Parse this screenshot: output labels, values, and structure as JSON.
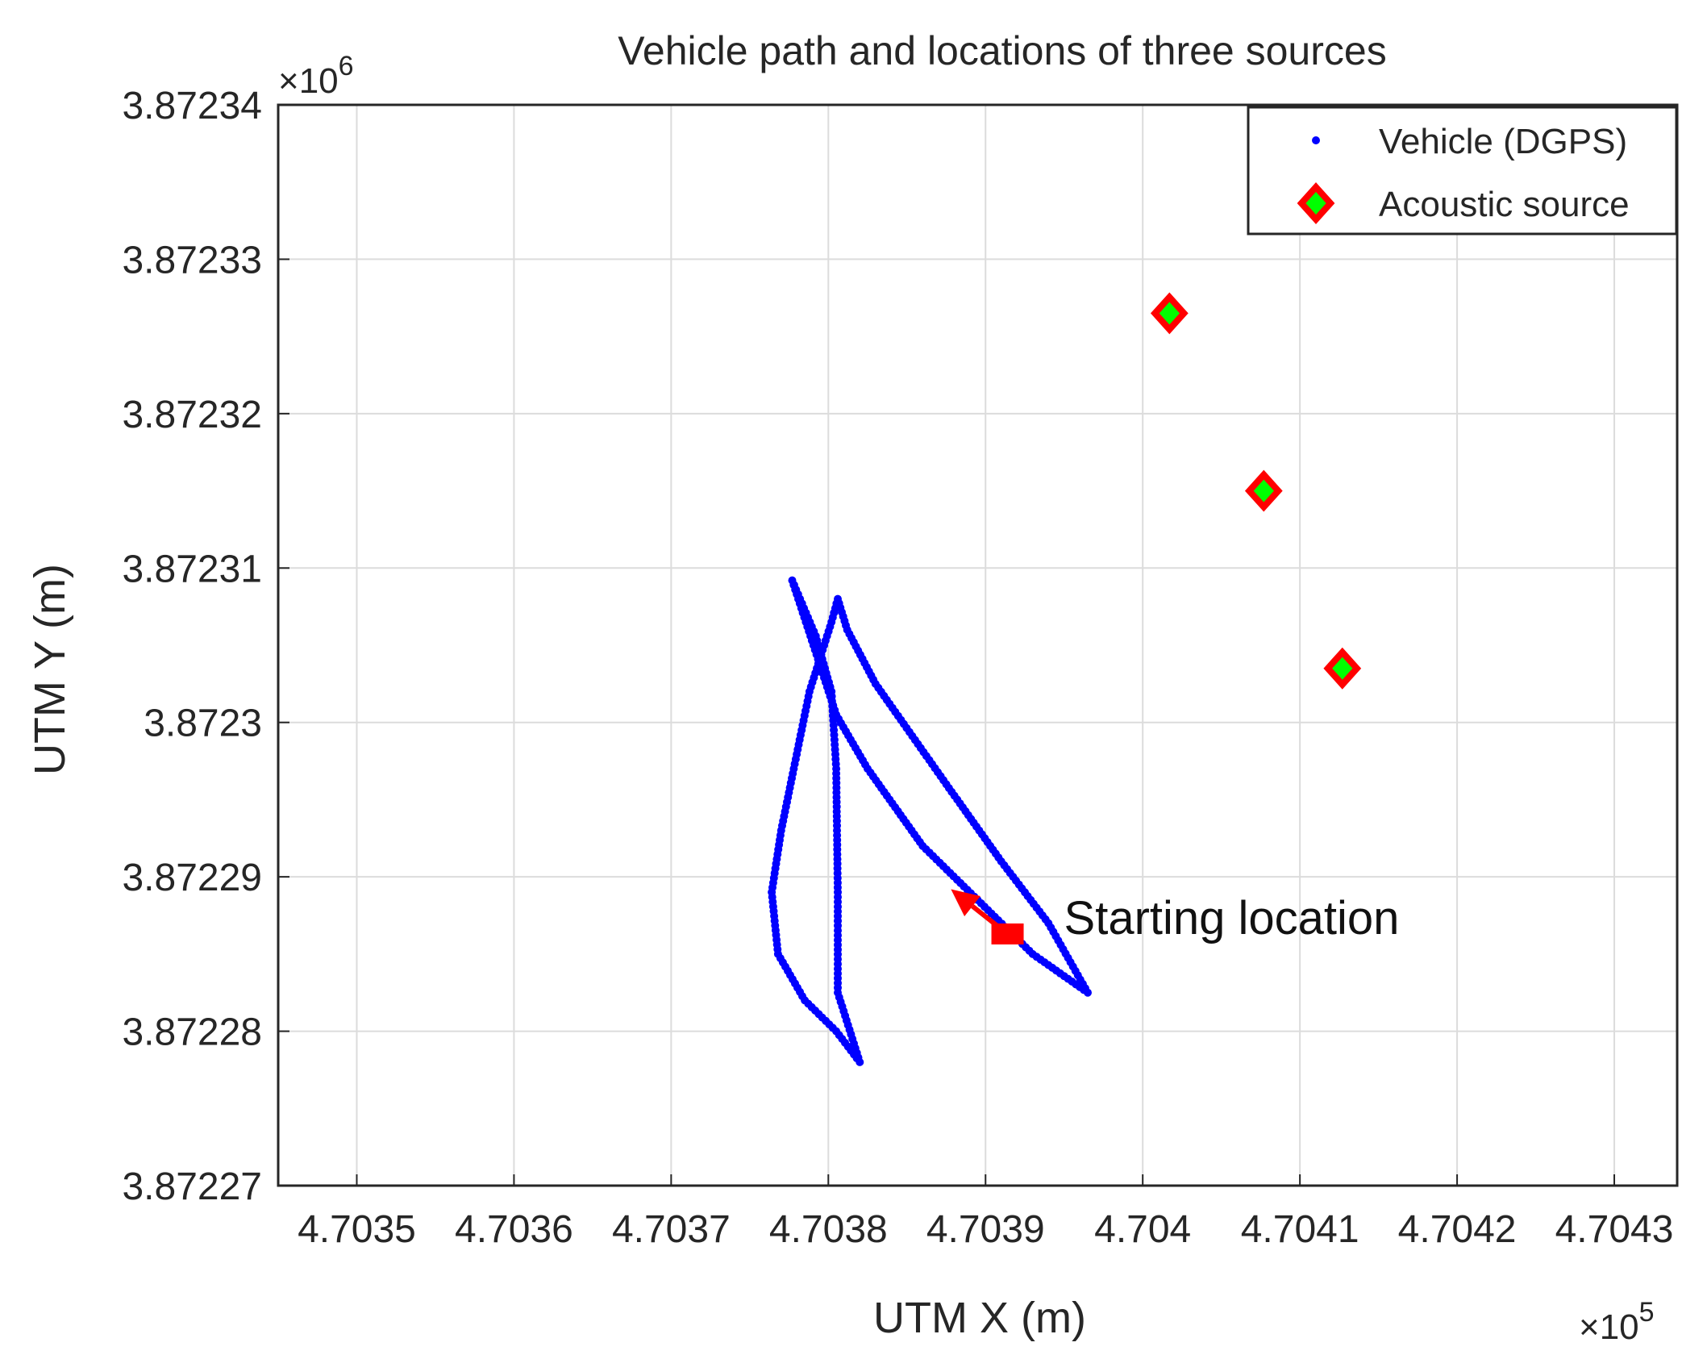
{
  "chart_data": {
    "type": "scatter",
    "title": "Vehicle path and locations of three sources",
    "xlabel": "UTM X (m)",
    "ylabel": "UTM Y (m)",
    "x_exponent_label": "×10",
    "x_exponent_power": "5",
    "y_exponent_label": "×10",
    "y_exponent_power": "6",
    "xlim": [
      470345,
      470434
    ],
    "ylim": [
      3872270,
      3872340
    ],
    "x_ticks": [
      470350,
      470360,
      470370,
      470380,
      470390,
      470400,
      470410,
      470420,
      470430
    ],
    "x_tick_labels": [
      "4.7035",
      "4.7036",
      "4.7037",
      "4.7038",
      "4.7039",
      "4.704",
      "4.7041",
      "4.7042",
      "4.7043"
    ],
    "y_ticks": [
      3872270,
      3872280,
      3872290,
      3872300,
      3872310,
      3872320,
      3872330,
      3872340
    ],
    "y_tick_labels": [
      "3.87227",
      "3.87228",
      "3.87229",
      "3.8723",
      "3.87231",
      "3.87232",
      "3.87233",
      "3.87234"
    ],
    "grid": true,
    "legend_position": "top-right",
    "series": [
      {
        "name": "Vehicle (DGPS)",
        "marker": "dot",
        "color": "#0000ff",
        "path_vertices": [
          [
            470396.5,
            3872282.5
          ],
          [
            470393.0,
            3872285.0
          ],
          [
            470386.0,
            3872292.0
          ],
          [
            470382.5,
            3872297.0
          ],
          [
            470380.5,
            3872300.5
          ],
          [
            470377.7,
            3872309.2
          ],
          [
            470379.2,
            3872305.6
          ],
          [
            470380.2,
            3872302.0
          ],
          [
            470380.5,
            3872297.0
          ],
          [
            470380.6,
            3872289.0
          ],
          [
            470380.6,
            3872282.5
          ],
          [
            470382.0,
            3872278.0
          ],
          [
            470380.5,
            3872280.0
          ],
          [
            470378.5,
            3872282.0
          ],
          [
            470376.8,
            3872285.0
          ],
          [
            470376.4,
            3872289.0
          ],
          [
            470377.0,
            3872293.0
          ],
          [
            470377.8,
            3872297.0
          ],
          [
            470378.8,
            3872302.0
          ],
          [
            470380.2,
            3872306.5
          ],
          [
            470380.6,
            3872308.0
          ],
          [
            470381.2,
            3872306.0
          ],
          [
            470383.0,
            3872302.5
          ],
          [
            470387.5,
            3872296.0
          ],
          [
            470391.0,
            3872291.0
          ],
          [
            470394.0,
            3872287.0
          ],
          [
            470396.5,
            3872282.5
          ]
        ]
      },
      {
        "name": "Acoustic source",
        "marker": "diamond",
        "color": "#00ff00",
        "edge_color": "#ff0000",
        "points": [
          [
            470401.7,
            3872326.5
          ],
          [
            470407.7,
            3872315.0
          ],
          [
            470412.7,
            3872303.5
          ]
        ]
      }
    ],
    "annotations": [
      {
        "text": "Starting location",
        "x": 470391.4,
        "y": 3872286.3,
        "arrow_to": [
          470387.8,
          3872289.2
        ],
        "color": "#ff0000"
      }
    ]
  }
}
